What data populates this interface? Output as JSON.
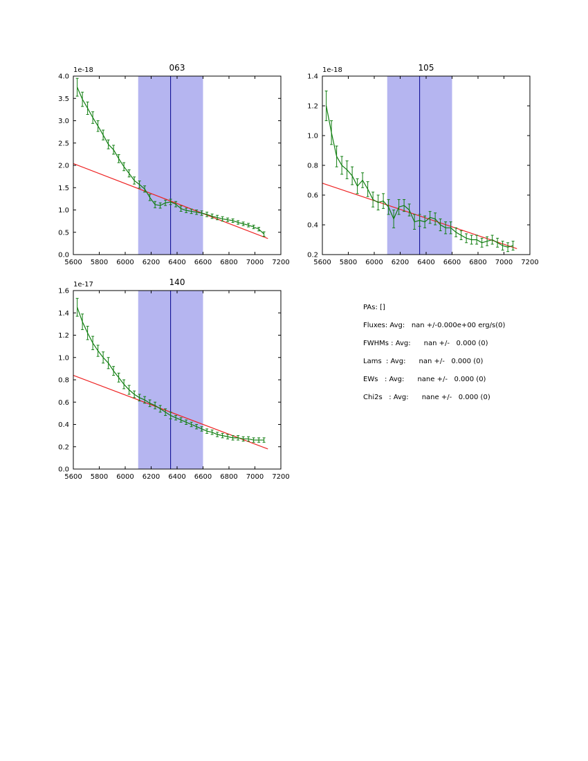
{
  "stats_panel": {
    "lines": [
      "PAs: []",
      "Fluxes: Avg:   nan +/-0.000e+00 erg/s(0)",
      "FWHMs : Avg:      nan +/-   0.000 (0)",
      "Lams  : Avg:      nan +/-   0.000 (0)",
      "EWs   : Avg:      nane +/-   0.000 (0)",
      "Chi2s   : Avg:      nane +/-   0.000 (0)"
    ]
  },
  "colors": {
    "spectrum": "#0f7d0f",
    "fit_line": "#ee2222",
    "band_fill": "#b5b5f0",
    "center_line": "#00008b",
    "frame": "#000000"
  },
  "chart_data": [
    {
      "type": "line",
      "title": "063",
      "offset_label": "1e-18",
      "xlim": [
        5600,
        7200
      ],
      "ylim": [
        0.0,
        4.0
      ],
      "xtick_vals": [
        5600,
        5800,
        6000,
        6200,
        6400,
        6600,
        6800,
        7000,
        7200
      ],
      "xtick_labels": [
        "5600",
        "5800",
        "6000",
        "6200",
        "6400",
        "6600",
        "6800",
        "7000",
        "7200"
      ],
      "ytick_vals": [
        0.0,
        0.5,
        1.0,
        1.5,
        2.0,
        2.5,
        3.0,
        3.5,
        4.0
      ],
      "ytick_labels": [
        "0.0",
        "0.5",
        "1.0",
        "1.5",
        "2.0",
        "2.5",
        "3.0",
        "3.5",
        "4.0"
      ],
      "band": [
        6100,
        6600
      ],
      "vline": 6350,
      "series": [
        {
          "name": "continuum-fit",
          "colorKey": "fit_line",
          "x": [
            5600,
            7100
          ],
          "y": [
            2.04,
            0.36
          ]
        },
        {
          "name": "spectrum",
          "colorKey": "spectrum",
          "x": [
            5630,
            5670,
            5710,
            5750,
            5790,
            5830,
            5870,
            5910,
            5950,
            5990,
            6030,
            6070,
            6110,
            6150,
            6190,
            6230,
            6270,
            6310,
            6350,
            6390,
            6430,
            6470,
            6510,
            6550,
            6590,
            6630,
            6670,
            6710,
            6750,
            6790,
            6830,
            6870,
            6910,
            6950,
            6990,
            7030,
            7070
          ],
          "y": [
            3.75,
            3.48,
            3.28,
            3.07,
            2.88,
            2.68,
            2.47,
            2.35,
            2.15,
            1.97,
            1.82,
            1.66,
            1.57,
            1.47,
            1.28,
            1.12,
            1.1,
            1.16,
            1.18,
            1.13,
            1.03,
            0.99,
            0.97,
            0.95,
            0.93,
            0.9,
            0.86,
            0.83,
            0.8,
            0.78,
            0.76,
            0.72,
            0.69,
            0.66,
            0.62,
            0.57,
            0.46
          ],
          "yerr": [
            0.2,
            0.16,
            0.14,
            0.13,
            0.12,
            0.11,
            0.1,
            0.1,
            0.09,
            0.09,
            0.08,
            0.08,
            0.08,
            0.07,
            0.07,
            0.07,
            0.06,
            0.06,
            0.06,
            0.06,
            0.06,
            0.05,
            0.05,
            0.05,
            0.05,
            0.05,
            0.05,
            0.05,
            0.05,
            0.04,
            0.04,
            0.04,
            0.04,
            0.04,
            0.04,
            0.04,
            0.05
          ]
        }
      ]
    },
    {
      "type": "line",
      "title": "105",
      "offset_label": "1e-18",
      "xlim": [
        5600,
        7200
      ],
      "ylim": [
        0.2,
        1.4
      ],
      "xtick_vals": [
        5600,
        5800,
        6000,
        6200,
        6400,
        6600,
        6800,
        7000,
        7200
      ],
      "xtick_labels": [
        "5600",
        "5800",
        "6000",
        "6200",
        "6400",
        "6600",
        "6800",
        "7000",
        "7200"
      ],
      "ytick_vals": [
        0.2,
        0.4,
        0.6,
        0.8,
        1.0,
        1.2,
        1.4
      ],
      "ytick_labels": [
        "0.2",
        "0.4",
        "0.6",
        "0.8",
        "1.0",
        "1.2",
        "1.4"
      ],
      "band": [
        6100,
        6600
      ],
      "vline": 6350,
      "series": [
        {
          "name": "continuum-fit",
          "colorKey": "fit_line",
          "x": [
            5600,
            7100
          ],
          "y": [
            0.68,
            0.24
          ]
        },
        {
          "name": "spectrum",
          "colorKey": "spectrum",
          "x": [
            5630,
            5670,
            5710,
            5750,
            5790,
            5830,
            5870,
            5910,
            5950,
            5990,
            6030,
            6070,
            6110,
            6150,
            6190,
            6230,
            6270,
            6310,
            6350,
            6390,
            6430,
            6470,
            6510,
            6550,
            6590,
            6630,
            6670,
            6710,
            6750,
            6790,
            6830,
            6870,
            6910,
            6950,
            6990,
            7030,
            7070
          ],
          "y": [
            1.2,
            1.02,
            0.86,
            0.8,
            0.77,
            0.73,
            0.66,
            0.7,
            0.64,
            0.57,
            0.55,
            0.56,
            0.52,
            0.44,
            0.52,
            0.53,
            0.5,
            0.42,
            0.43,
            0.42,
            0.45,
            0.44,
            0.4,
            0.38,
            0.38,
            0.35,
            0.33,
            0.31,
            0.3,
            0.3,
            0.28,
            0.29,
            0.3,
            0.28,
            0.26,
            0.25,
            0.26
          ],
          "yerr": [
            0.1,
            0.08,
            0.07,
            0.06,
            0.06,
            0.06,
            0.05,
            0.05,
            0.05,
            0.05,
            0.05,
            0.05,
            0.05,
            0.06,
            0.05,
            0.04,
            0.04,
            0.05,
            0.04,
            0.04,
            0.04,
            0.04,
            0.04,
            0.04,
            0.04,
            0.03,
            0.03,
            0.03,
            0.03,
            0.03,
            0.03,
            0.03,
            0.03,
            0.03,
            0.03,
            0.03,
            0.03
          ]
        }
      ]
    },
    {
      "type": "line",
      "title": "140",
      "offset_label": "1e-17",
      "xlim": [
        5600,
        7200
      ],
      "ylim": [
        0.0,
        1.6
      ],
      "xtick_vals": [
        5600,
        5800,
        6000,
        6200,
        6400,
        6600,
        6800,
        7000,
        7200
      ],
      "xtick_labels": [
        "5600",
        "5800",
        "6000",
        "6200",
        "6400",
        "6600",
        "6800",
        "7000",
        "7200"
      ],
      "ytick_vals": [
        0.0,
        0.2,
        0.4,
        0.6,
        0.8,
        1.0,
        1.2,
        1.4,
        1.6
      ],
      "ytick_labels": [
        "0.0",
        "0.2",
        "0.4",
        "0.6",
        "0.8",
        "1.0",
        "1.2",
        "1.4",
        "1.6"
      ],
      "band": [
        6100,
        6600
      ],
      "vline": 6350,
      "series": [
        {
          "name": "continuum-fit",
          "colorKey": "fit_line",
          "x": [
            5600,
            7100
          ],
          "y": [
            0.84,
            0.18
          ]
        },
        {
          "name": "spectrum",
          "colorKey": "spectrum",
          "x": [
            5630,
            5670,
            5710,
            5750,
            5790,
            5830,
            5870,
            5910,
            5950,
            5990,
            6030,
            6070,
            6110,
            6150,
            6190,
            6230,
            6270,
            6310,
            6350,
            6390,
            6430,
            6470,
            6510,
            6550,
            6590,
            6630,
            6670,
            6710,
            6750,
            6790,
            6830,
            6870,
            6910,
            6950,
            6990,
            7030,
            7070
          ],
          "y": [
            1.45,
            1.32,
            1.22,
            1.13,
            1.06,
            1.0,
            0.95,
            0.88,
            0.82,
            0.76,
            0.71,
            0.67,
            0.64,
            0.62,
            0.59,
            0.57,
            0.54,
            0.51,
            0.48,
            0.46,
            0.44,
            0.42,
            0.4,
            0.38,
            0.36,
            0.34,
            0.33,
            0.31,
            0.3,
            0.29,
            0.28,
            0.28,
            0.27,
            0.27,
            0.26,
            0.26,
            0.26
          ],
          "yerr": [
            0.08,
            0.07,
            0.06,
            0.06,
            0.05,
            0.05,
            0.05,
            0.04,
            0.04,
            0.04,
            0.04,
            0.03,
            0.03,
            0.03,
            0.03,
            0.03,
            0.03,
            0.03,
            0.03,
            0.02,
            0.02,
            0.02,
            0.02,
            0.02,
            0.02,
            0.02,
            0.02,
            0.02,
            0.02,
            0.02,
            0.02,
            0.02,
            0.02,
            0.02,
            0.02,
            0.02,
            0.02
          ]
        }
      ]
    }
  ]
}
